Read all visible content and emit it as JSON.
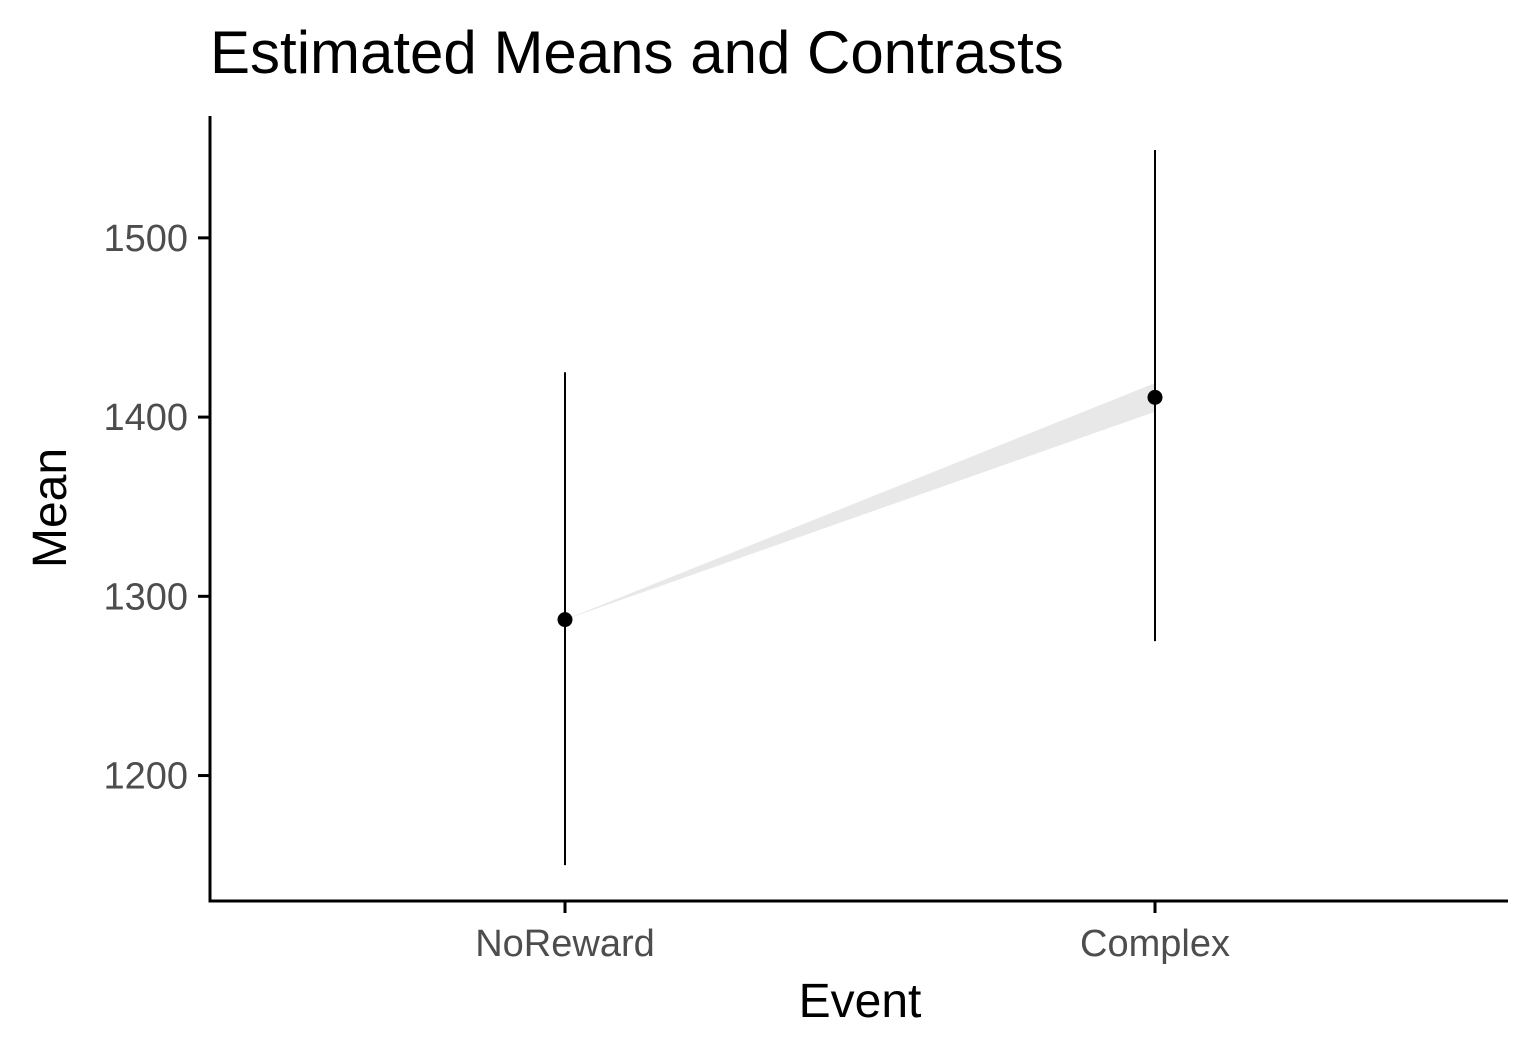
{
  "chart_data": {
    "type": "scatter",
    "title": "Estimated Means and Contrasts",
    "xlabel": "Event",
    "ylabel": "Mean",
    "categories": [
      "NoReward",
      "Complex"
    ],
    "means": [
      1287,
      1411
    ],
    "ci_lower": [
      1150,
      1275
    ],
    "ci_upper": [
      1425,
      1549
    ],
    "contrast_band": {
      "from": "NoReward",
      "to": "Complex",
      "lower_at_to": 1403,
      "upper_at_to": 1419
    },
    "yticks": [
      1200,
      1300,
      1400,
      1500
    ],
    "ylim": [
      1130,
      1568
    ],
    "grid": false,
    "legend": "none",
    "colors": {
      "point": "#000000",
      "band": "#e8e8e8",
      "axis": "#000000"
    }
  }
}
